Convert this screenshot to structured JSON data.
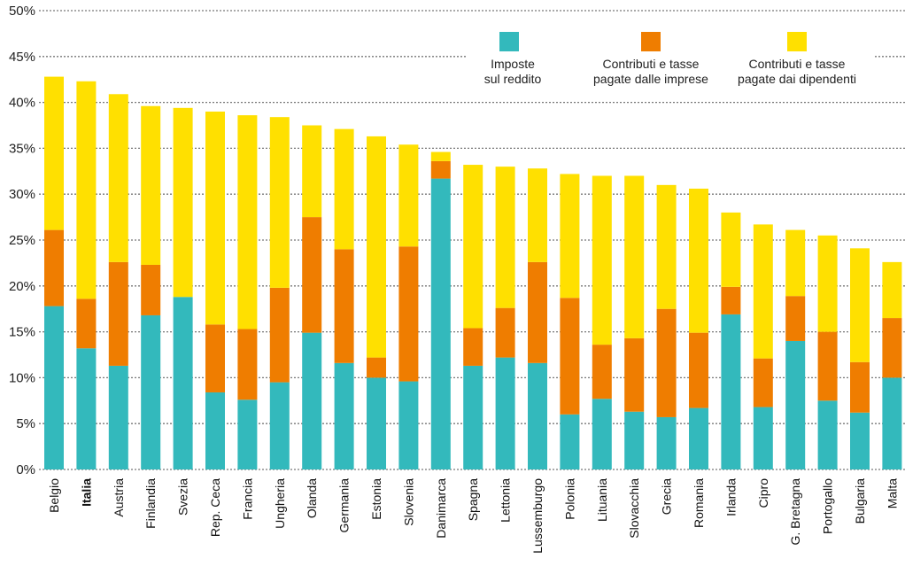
{
  "chart_data": {
    "type": "bar",
    "stacked": true,
    "categories": [
      "Belgio",
      "Italia",
      "Austria",
      "Finlandia",
      "Svezia",
      "Rep. Ceca",
      "Francia",
      "Ungheria",
      "Olanda",
      "Germania",
      "Estonia",
      "Slovenia",
      "Danimarca",
      "Spagna",
      "Lettonia",
      "Lussemburgo",
      "Polonia",
      "Lituania",
      "Slovacchia",
      "Grecia",
      "Romania",
      "Irlanda",
      "Cipro",
      "G. Bretagna",
      "Portogallo",
      "Bulgaria",
      "Malta"
    ],
    "highlight_category": "Italia",
    "series": [
      {
        "name": [
          "Imposte",
          "sul reddito"
        ],
        "color": "#33b9bc",
        "values": [
          17.8,
          13.2,
          11.3,
          16.8,
          18.8,
          8.4,
          7.6,
          9.5,
          14.9,
          11.6,
          10.0,
          9.6,
          31.7,
          11.3,
          12.2,
          11.6,
          6.0,
          7.7,
          6.3,
          5.7,
          6.7,
          16.9,
          6.8,
          14.0,
          7.5,
          6.2,
          10.0
        ]
      },
      {
        "name": [
          "Contributi e tasse",
          "pagate dalle imprese"
        ],
        "color": "#ef7d00",
        "values": [
          8.3,
          5.4,
          11.3,
          5.5,
          0,
          7.4,
          7.7,
          10.3,
          12.6,
          12.4,
          2.2,
          14.7,
          1.9,
          4.1,
          5.4,
          11.0,
          12.7,
          5.9,
          8.0,
          11.8,
          8.2,
          3.0,
          5.3,
          4.9,
          7.5,
          5.5,
          6.5
        ]
      },
      {
        "name": [
          "Contributi e tasse",
          "pagate dai dipendenti"
        ],
        "color": "#ffe000",
        "values": [
          16.7,
          23.7,
          18.3,
          17.3,
          20.6,
          23.2,
          23.3,
          18.6,
          10.0,
          13.1,
          24.1,
          11.1,
          1.0,
          17.8,
          15.4,
          10.2,
          13.5,
          18.4,
          17.7,
          13.5,
          15.7,
          8.1,
          14.6,
          7.2,
          10.5,
          12.4,
          6.1
        ]
      }
    ],
    "y_ticks": [
      "0%",
      "5%",
      "10%",
      "15%",
      "20%",
      "25%",
      "30%",
      "35%",
      "40%",
      "45%",
      "50%"
    ],
    "ylim": [
      0,
      50
    ],
    "grid": true,
    "legend": "top-right"
  }
}
